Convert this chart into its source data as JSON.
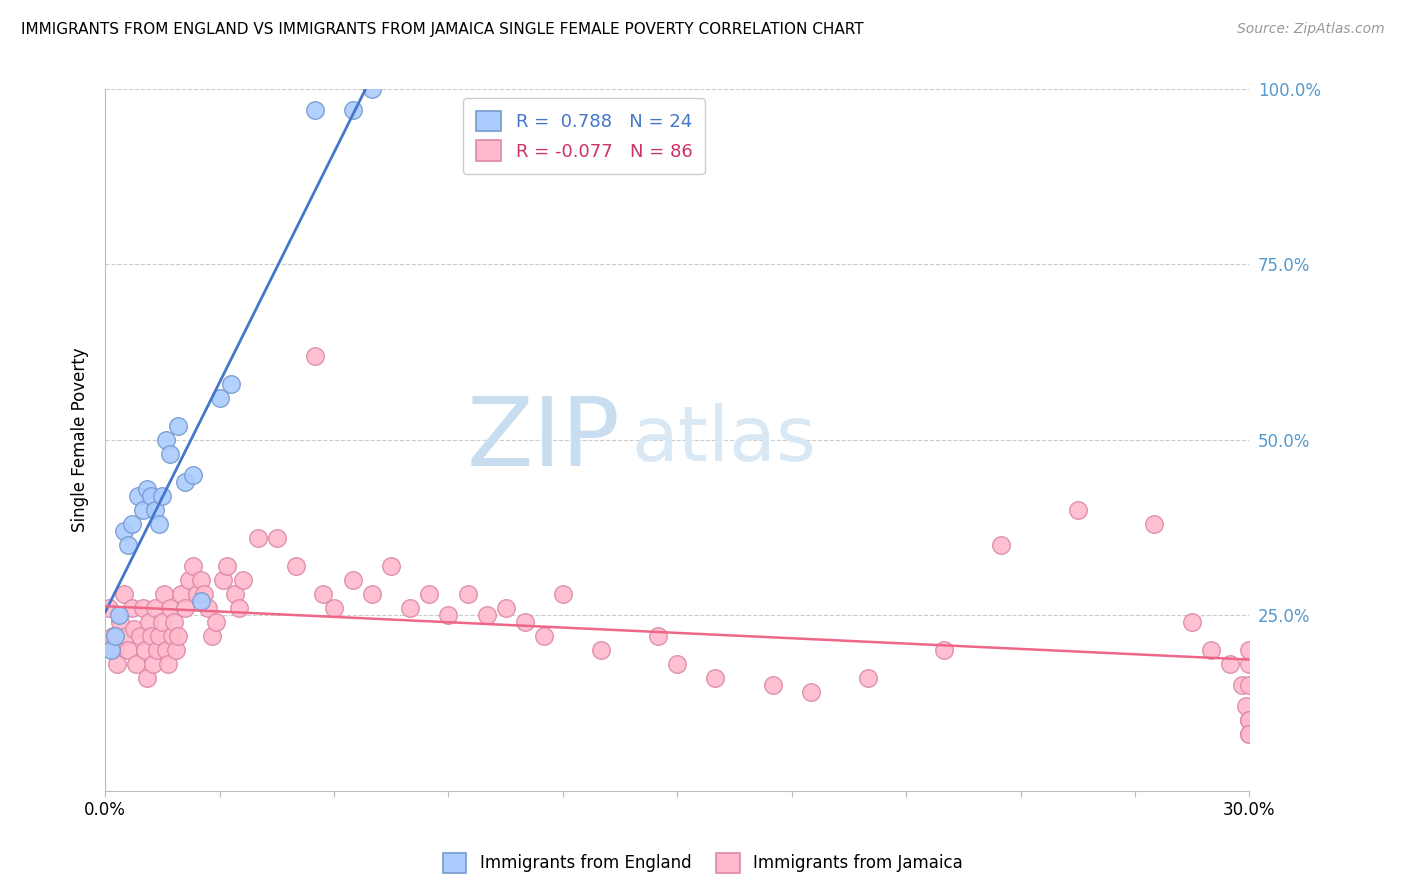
{
  "title": "IMMIGRANTS FROM ENGLAND VS IMMIGRANTS FROM JAMAICA SINGLE FEMALE POVERTY CORRELATION CHART",
  "source": "Source: ZipAtlas.com",
  "ylabel": "Single Female Poverty",
  "xlim": [
    0.0,
    30.0
  ],
  "ylim": [
    0.0,
    100.0
  ],
  "england_R": 0.788,
  "england_N": 24,
  "jamaica_R": -0.077,
  "jamaica_N": 86,
  "england_color": "#aaccff",
  "jamaica_color": "#ffbbcc",
  "england_edge": "#7799cc",
  "jamaica_edge": "#dd88aa",
  "trend_england_color": "#4477cc",
  "trend_jamaica_color": "#ee6688",
  "watermark_zip": "ZIP",
  "watermark_atlas": "atlas",
  "watermark_color": "#cce0f5",
  "legend_r1": "R =  0.788   N = 24",
  "legend_r2": "R = -0.077   N = 86",
  "legend_color1": "#4477cc",
  "legend_color2": "#cc3366",
  "bottom_label1": "Immigrants from England",
  "bottom_label2": "Immigrants from Jamaica",
  "england_x": [
    0.15,
    0.25,
    0.35,
    0.5,
    0.6,
    0.7,
    0.85,
    1.0,
    1.1,
    1.2,
    1.3,
    1.4,
    1.5,
    1.6,
    1.7,
    1.9,
    2.1,
    2.3,
    2.5,
    3.0,
    3.3,
    5.5,
    6.5,
    7.0
  ],
  "england_y": [
    20,
    22,
    25,
    37,
    35,
    38,
    42,
    40,
    43,
    42,
    40,
    38,
    42,
    50,
    48,
    52,
    44,
    45,
    27,
    56,
    58,
    97,
    97,
    100
  ],
  "jamaica_x": [
    0.1,
    0.2,
    0.25,
    0.3,
    0.4,
    0.5,
    0.55,
    0.6,
    0.7,
    0.75,
    0.8,
    0.9,
    1.0,
    1.05,
    1.1,
    1.15,
    1.2,
    1.25,
    1.3,
    1.35,
    1.4,
    1.5,
    1.55,
    1.6,
    1.65,
    1.7,
    1.75,
    1.8,
    1.85,
    1.9,
    2.0,
    2.1,
    2.2,
    2.3,
    2.4,
    2.5,
    2.6,
    2.7,
    2.8,
    2.9,
    3.1,
    3.2,
    3.4,
    3.5,
    3.6,
    4.0,
    4.5,
    5.0,
    5.5,
    5.7,
    6.0,
    6.5,
    7.0,
    7.5,
    8.0,
    8.5,
    9.0,
    9.5,
    10.0,
    10.5,
    11.0,
    11.5,
    12.0,
    13.0,
    14.5,
    15.0,
    16.0,
    17.5,
    18.5,
    20.0,
    22.0,
    23.5,
    25.5,
    27.5,
    28.5,
    29.0,
    29.5,
    29.8,
    29.9,
    30.0,
    30.0,
    30.0,
    30.0,
    30.0,
    30.0,
    30.0
  ],
  "jamaica_y": [
    26,
    22,
    20,
    18,
    24,
    28,
    22,
    20,
    26,
    23,
    18,
    22,
    26,
    20,
    16,
    24,
    22,
    18,
    26,
    20,
    22,
    24,
    28,
    20,
    18,
    26,
    22,
    24,
    20,
    22,
    28,
    26,
    30,
    32,
    28,
    30,
    28,
    26,
    22,
    24,
    30,
    32,
    28,
    26,
    30,
    36,
    36,
    32,
    62,
    28,
    26,
    30,
    28,
    32,
    26,
    28,
    25,
    28,
    25,
    26,
    24,
    22,
    28,
    20,
    22,
    18,
    16,
    15,
    14,
    16,
    20,
    35,
    40,
    38,
    24,
    20,
    18,
    15,
    12,
    15,
    18,
    10,
    10,
    8,
    8,
    20
  ]
}
